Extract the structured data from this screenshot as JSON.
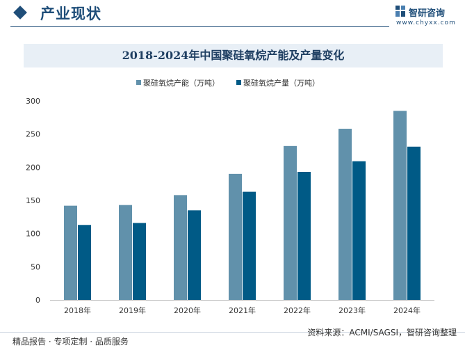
{
  "header": {
    "section_title": "产业现状",
    "brand_name": "智研咨询",
    "brand_url": "www.chyxx.com"
  },
  "chart_data": {
    "type": "bar",
    "title": "2018-2024年中国聚硅氧烷产能及产量变化",
    "categories": [
      "2018年",
      "2019年",
      "2020年",
      "2021年",
      "2022年",
      "2023年",
      "2024年"
    ],
    "series": [
      {
        "name": "聚硅氧烷产能（万吨）",
        "values": [
          142,
          143,
          158,
          190,
          232,
          258,
          285
        ]
      },
      {
        "name": "聚硅氧烷产量（万吨）",
        "values": [
          113,
          116,
          135,
          163,
          193,
          209,
          231
        ]
      }
    ],
    "y_ticks": [
      "0",
      "50",
      "100",
      "150",
      "200",
      "250",
      "300"
    ],
    "ylim": [
      0,
      300
    ],
    "legend_position": "top",
    "colors": [
      "#6191ab",
      "#005a86"
    ],
    "grid": false
  },
  "footer": {
    "left": "精品报告 · 专项定制 · 品质服务",
    "source": "资料来源：ACMI/SAGSI，智研咨询整理"
  }
}
